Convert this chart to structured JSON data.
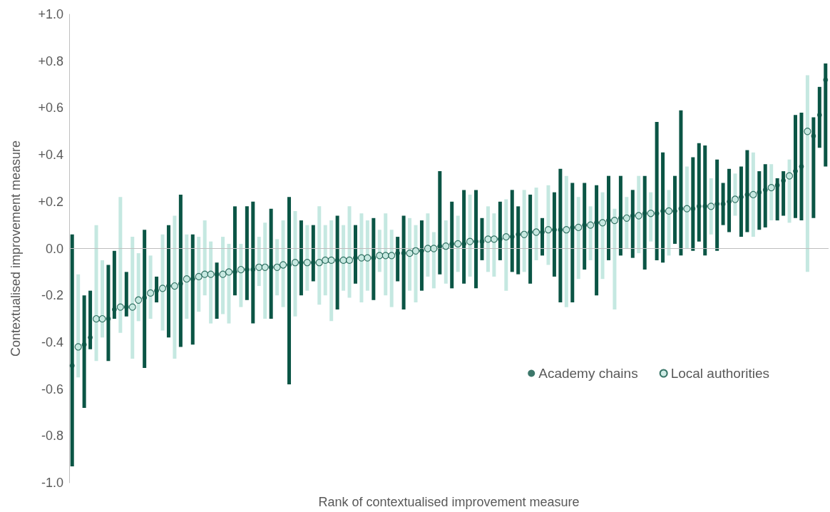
{
  "chart_data": {
    "type": "scatter",
    "xlabel": "Rank of contextualised improvement measure",
    "ylabel": "Contextualised improvement measure",
    "categories": [
      null,
      null,
      null,
      null,
      null,
      null,
      null,
      null,
      null,
      null,
      null,
      null,
      null,
      null,
      null,
      null,
      null,
      null,
      null,
      null,
      null,
      null,
      null,
      null,
      null,
      null,
      null,
      null,
      null,
      null,
      null,
      null,
      null,
      null,
      null,
      null,
      null,
      null,
      null,
      null,
      null,
      null,
      null,
      null,
      null,
      null,
      null,
      null,
      null,
      null,
      null,
      null,
      null,
      null,
      null,
      null,
      null,
      null,
      null,
      null,
      null,
      null,
      null,
      null,
      null,
      null,
      null,
      null,
      null,
      null,
      null,
      null,
      null,
      null,
      null,
      null,
      null,
      null,
      null,
      null,
      null,
      null,
      null,
      null,
      null,
      null,
      null,
      null,
      null,
      null,
      null,
      null,
      null,
      null,
      null,
      null,
      null,
      null,
      null,
      null,
      null,
      null,
      null,
      null,
      null,
      null,
      null,
      null,
      null,
      null,
      null,
      null,
      null,
      null,
      null,
      null,
      null,
      null,
      null,
      null,
      null,
      null,
      null,
      null,
      null,
      null
    ],
    "ylim": [
      -1,
      1
    ],
    "yticks": [
      {
        "value": -1,
        "label": "-1.0"
      },
      {
        "value": -0.8,
        "label": "-0.8"
      },
      {
        "value": -0.6,
        "label": "-0.6"
      },
      {
        "value": -0.4,
        "label": "-0.4"
      },
      {
        "value": -0.2,
        "label": "-0.2"
      },
      {
        "value": 0,
        "label": "0.0"
      },
      {
        "value": 0.2,
        "label": "+0.2"
      },
      {
        "value": 0.4,
        "label": "+0.4"
      },
      {
        "value": 0.6,
        "label": "+0.6"
      },
      {
        "value": 0.8,
        "label": "+0.8"
      },
      {
        "value": 1,
        "label": "+1.0"
      }
    ],
    "grid": false,
    "legend": "bottom right",
    "marker": "circle",
    "ref_lines": [
      {
        "axis": "y",
        "value": 0,
        "color": "#bfbfbf"
      }
    ],
    "series": [
      {
        "name": "Local authorities",
        "color": "#c5e8e1",
        "values": [
          null,
          -0.42,
          null,
          null,
          -0.3,
          -0.3,
          null,
          null,
          -0.25,
          null,
          -0.25,
          -0.22,
          null,
          -0.19,
          null,
          -0.17,
          null,
          -0.16,
          null,
          -0.13,
          null,
          -0.12,
          -0.11,
          -0.11,
          null,
          -0.11,
          -0.1,
          null,
          -0.09,
          null,
          null,
          -0.08,
          -0.08,
          null,
          -0.08,
          -0.07,
          null,
          -0.06,
          null,
          -0.06,
          null,
          -0.06,
          -0.05,
          -0.05,
          null,
          -0.05,
          -0.05,
          null,
          -0.04,
          -0.04,
          null,
          -0.03,
          -0.03,
          -0.03,
          null,
          null,
          -0.02,
          -0.01,
          null,
          0.0,
          0.0,
          null,
          0.01,
          null,
          0.02,
          null,
          0.03,
          null,
          null,
          0.04,
          0.04,
          null,
          0.05,
          null,
          null,
          0.06,
          null,
          0.07,
          null,
          0.08,
          null,
          null,
          0.08,
          null,
          0.09,
          null,
          0.1,
          null,
          0.11,
          null,
          0.12,
          null,
          0.13,
          null,
          0.14,
          null,
          0.15,
          null,
          null,
          0.16,
          null,
          null,
          0.17,
          null,
          null,
          null,
          0.18,
          null,
          null,
          null,
          0.21,
          null,
          null,
          0.23,
          null,
          null,
          0.26,
          null,
          null,
          0.31,
          null,
          null,
          0.5,
          null,
          null,
          null
        ],
        "errors": [
          null,
          [
            -0.55,
            -0.11
          ],
          null,
          null,
          [
            -0.48,
            0.1
          ],
          [
            -0.38,
            -0.05
          ],
          null,
          null,
          [
            -0.36,
            0.22
          ],
          null,
          [
            -0.47,
            0.05
          ],
          [
            -0.31,
            -0.02
          ],
          null,
          [
            -0.3,
            -0.03
          ],
          null,
          [
            -0.35,
            0.06
          ],
          null,
          [
            -0.47,
            0.14
          ],
          null,
          [
            -0.3,
            0.06
          ],
          null,
          [
            -0.27,
            0.05
          ],
          [
            -0.2,
            0.12
          ],
          [
            -0.32,
            0.03
          ],
          null,
          [
            -0.28,
            0.05
          ],
          [
            -0.32,
            0.02
          ],
          null,
          [
            -0.25,
            0.02
          ],
          null,
          null,
          [
            -0.16,
            0.05
          ],
          [
            -0.3,
            0.11
          ],
          null,
          [
            -0.2,
            0.04
          ],
          [
            -0.25,
            0.12
          ],
          null,
          [
            -0.29,
            0.16
          ],
          null,
          [
            -0.18,
            0.1
          ],
          null,
          [
            -0.24,
            0.18
          ],
          [
            -0.2,
            0.1
          ],
          [
            -0.31,
            0.12
          ],
          null,
          [
            -0.18,
            0.1
          ],
          [
            -0.21,
            0.18
          ],
          null,
          [
            -0.23,
            0.15
          ],
          [
            -0.18,
            0.12
          ],
          null,
          [
            -0.1,
            0.08
          ],
          [
            -0.2,
            0.15
          ],
          [
            -0.25,
            0.08
          ],
          null,
          null,
          [
            -0.18,
            0.13
          ],
          [
            -0.23,
            0.1
          ],
          null,
          [
            -0.12,
            0.15
          ],
          [
            -0.17,
            0.07
          ],
          null,
          [
            -0.15,
            0.12
          ],
          null,
          [
            -0.1,
            0.14
          ],
          null,
          [
            -0.12,
            0.23
          ],
          null,
          null,
          [
            -0.1,
            0.18
          ],
          [
            -0.12,
            0.15
          ],
          null,
          [
            -0.18,
            0.21
          ],
          null,
          null,
          [
            -0.1,
            0.25
          ],
          null,
          [
            -0.05,
            0.26
          ],
          null,
          [
            -0.07,
            0.27
          ],
          null,
          null,
          [
            -0.25,
            0.31
          ],
          null,
          [
            -0.13,
            0.22
          ],
          null,
          [
            -0.05,
            0.18
          ],
          null,
          [
            -0.13,
            0.24
          ],
          null,
          [
            -0.26,
            0.17
          ],
          null,
          [
            0.0,
            0.22
          ],
          null,
          [
            -0.02,
            0.31
          ],
          null,
          [
            0.03,
            0.24
          ],
          null,
          null,
          [
            -0.03,
            0.25
          ],
          null,
          null,
          [
            0.0,
            0.35
          ],
          null,
          null,
          null,
          [
            0.06,
            0.3
          ],
          null,
          null,
          null,
          [
            0.14,
            0.32
          ],
          null,
          null,
          [
            0.05,
            0.41
          ],
          null,
          null,
          [
            0.12,
            0.36
          ],
          null,
          null,
          [
            0.11,
            0.38
          ],
          null,
          null,
          [
            -0.1,
            0.74
          ],
          null,
          null,
          null
        ]
      },
      {
        "name": "Academy chains",
        "color": "#0b5545",
        "values": [
          -0.5,
          null,
          -0.41,
          -0.38,
          null,
          null,
          -0.3,
          -0.26,
          null,
          -0.25,
          null,
          null,
          -0.21,
          null,
          -0.18,
          null,
          -0.16,
          null,
          -0.15,
          null,
          -0.13,
          null,
          null,
          null,
          -0.11,
          null,
          null,
          -0.1,
          null,
          -0.09,
          -0.09,
          null,
          null,
          -0.08,
          null,
          null,
          -0.07,
          null,
          -0.06,
          null,
          -0.06,
          null,
          null,
          null,
          -0.05,
          null,
          null,
          -0.04,
          null,
          null,
          -0.04,
          null,
          null,
          null,
          -0.02,
          -0.02,
          null,
          null,
          -0.01,
          null,
          null,
          0.01,
          null,
          0.02,
          null,
          0.02,
          null,
          0.03,
          0.03,
          null,
          null,
          0.04,
          null,
          0.05,
          0.06,
          null,
          0.07,
          null,
          0.07,
          null,
          0.08,
          0.08,
          null,
          0.09,
          null,
          0.1,
          null,
          0.11,
          null,
          0.12,
          null,
          0.13,
          null,
          0.14,
          null,
          0.15,
          null,
          0.15,
          0.16,
          null,
          0.16,
          0.17,
          null,
          0.17,
          0.18,
          0.18,
          null,
          0.19,
          0.19,
          0.2,
          null,
          0.22,
          0.23,
          null,
          0.24,
          0.25,
          null,
          0.27,
          0.29,
          null,
          0.33,
          0.35,
          null,
          0.48,
          0.57,
          0.72
        ],
        "errors": [
          [
            -0.93,
            0.06
          ],
          null,
          [
            -0.68,
            -0.2
          ],
          [
            -0.43,
            -0.18
          ],
          null,
          null,
          [
            -0.48,
            -0.07
          ],
          [
            -0.3,
            -0.01
          ],
          null,
          [
            -0.29,
            -0.1
          ],
          null,
          null,
          [
            -0.51,
            0.08
          ],
          null,
          [
            -0.23,
            -0.12
          ],
          null,
          [
            -0.38,
            0.1
          ],
          null,
          [
            -0.42,
            0.23
          ],
          null,
          [
            -0.41,
            0.06
          ],
          null,
          null,
          null,
          [
            -0.3,
            -0.06
          ],
          null,
          null,
          [
            -0.2,
            0.18
          ],
          null,
          [
            -0.22,
            0.18
          ],
          [
            -0.32,
            0.2
          ],
          null,
          null,
          [
            -0.3,
            0.17
          ],
          null,
          null,
          [
            -0.58,
            0.22
          ],
          null,
          [
            -0.2,
            0.12
          ],
          null,
          [
            -0.14,
            0.1
          ],
          null,
          null,
          null,
          [
            -0.26,
            0.14
          ],
          null,
          null,
          [
            -0.15,
            0.1
          ],
          null,
          null,
          [
            -0.22,
            0.13
          ],
          null,
          null,
          null,
          [
            -0.14,
            0.05
          ],
          [
            -0.26,
            0.14
          ],
          null,
          null,
          [
            -0.18,
            0.12
          ],
          null,
          null,
          [
            -0.11,
            0.33
          ],
          null,
          [
            -0.17,
            0.2
          ],
          null,
          [
            -0.15,
            0.25
          ],
          null,
          [
            -0.17,
            0.25
          ],
          [
            -0.05,
            0.13
          ],
          null,
          null,
          [
            -0.05,
            0.2
          ],
          null,
          [
            -0.1,
            0.25
          ],
          [
            -0.11,
            0.18
          ],
          null,
          [
            -0.15,
            0.23
          ],
          null,
          [
            -0.03,
            0.13
          ],
          null,
          [
            -0.12,
            0.24
          ],
          [
            -0.23,
            0.34
          ],
          null,
          [
            -0.23,
            0.28
          ],
          null,
          [
            -0.09,
            0.28
          ],
          null,
          [
            -0.2,
            0.27
          ],
          null,
          [
            -0.05,
            0.31
          ],
          null,
          [
            -0.03,
            0.31
          ],
          null,
          [
            -0.04,
            0.25
          ],
          null,
          [
            -0.09,
            0.31
          ],
          null,
          [
            -0.05,
            0.54
          ],
          [
            -0.06,
            0.41
          ],
          null,
          [
            0.02,
            0.31
          ],
          [
            -0.03,
            0.59
          ],
          null,
          [
            -0.01,
            0.39
          ],
          [
            0.03,
            0.45
          ],
          [
            -0.03,
            0.44
          ],
          null,
          [
            -0.01,
            0.38
          ],
          [
            0.1,
            0.28
          ],
          [
            0.07,
            0.34
          ],
          null,
          [
            0.05,
            0.35
          ],
          [
            0.07,
            0.42
          ],
          null,
          [
            0.08,
            0.33
          ],
          [
            0.09,
            0.36
          ],
          null,
          [
            0.12,
            0.3
          ],
          [
            0.14,
            0.33
          ],
          null,
          [
            0.13,
            0.57
          ],
          [
            0.12,
            0.58
          ],
          null,
          [
            0.13,
            0.56
          ],
          [
            0.43,
            0.69
          ],
          [
            0.35,
            0.79
          ]
        ]
      }
    ]
  }
}
